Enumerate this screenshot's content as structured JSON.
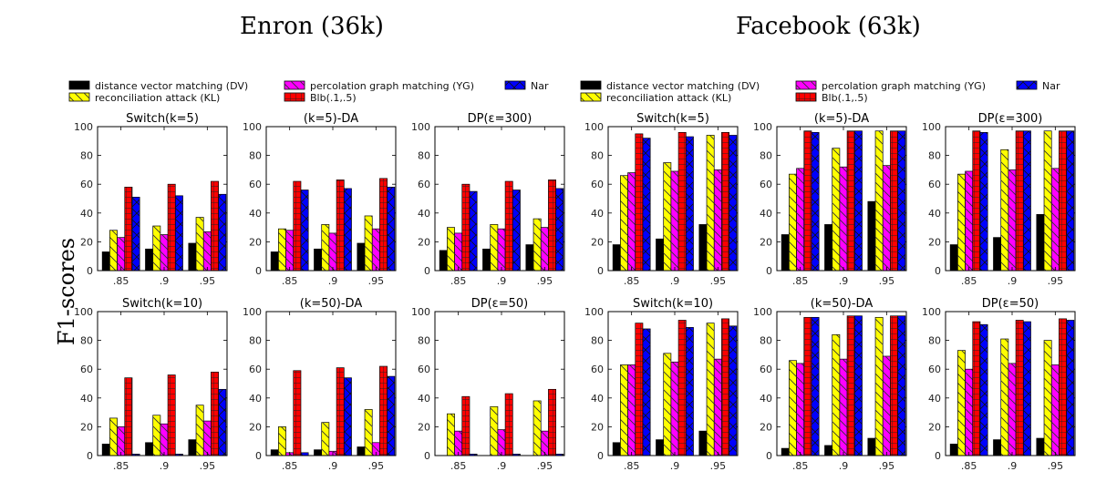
{
  "figure": {
    "ylabel": "F1-scores",
    "datasets": [
      {
        "title": "Enron (36k)"
      },
      {
        "title": "Facebook (63k)"
      }
    ]
  },
  "legend": [
    {
      "label": "distance vector matching (DV)",
      "color": "#000000",
      "hatch": "none"
    },
    {
      "label": "reconciliation attack (KL)",
      "color": "#ffff00",
      "hatch": "diagonal"
    },
    {
      "label": "percolation graph matching (YG)",
      "color": "#ff00ff",
      "hatch": "diagonal"
    },
    {
      "label": "Blb(.1,.5)",
      "color": "#ff0000",
      "hatch": "grid"
    },
    {
      "label": "Nar",
      "color": "#0000ff",
      "hatch": "cross"
    }
  ],
  "chart_data": [
    {
      "type": "bar",
      "dataset": "Enron (36k)",
      "title": "Switch(k=5)",
      "categories": [
        ".85",
        ".9",
        ".95"
      ],
      "ylim": [
        0,
        100
      ],
      "yticks": [
        0,
        20,
        40,
        60,
        80,
        100
      ],
      "series": [
        {
          "name": "DV",
          "values": [
            13,
            15,
            19
          ]
        },
        {
          "name": "KL",
          "values": [
            28,
            31,
            37
          ]
        },
        {
          "name": "YG",
          "values": [
            23,
            25,
            27
          ]
        },
        {
          "name": "Blb(.1,.5)",
          "values": [
            58,
            60,
            62
          ]
        },
        {
          "name": "Nar",
          "values": [
            51,
            52,
            53
          ]
        }
      ]
    },
    {
      "type": "bar",
      "dataset": "Enron (36k)",
      "title": "(k=5)-DA",
      "categories": [
        ".85",
        ".9",
        ".95"
      ],
      "ylim": [
        0,
        100
      ],
      "yticks": [
        0,
        20,
        40,
        60,
        80,
        100
      ],
      "series": [
        {
          "name": "DV",
          "values": [
            13,
            15,
            19
          ]
        },
        {
          "name": "KL",
          "values": [
            29,
            32,
            38
          ]
        },
        {
          "name": "YG",
          "values": [
            28,
            26,
            29
          ]
        },
        {
          "name": "Blb(.1,.5)",
          "values": [
            62,
            63,
            64
          ]
        },
        {
          "name": "Nar",
          "values": [
            56,
            57,
            58
          ]
        }
      ]
    },
    {
      "type": "bar",
      "dataset": "Enron (36k)",
      "title": "DP(ε=300)",
      "categories": [
        ".85",
        ".9",
        ".95"
      ],
      "ylim": [
        0,
        100
      ],
      "yticks": [
        0,
        20,
        40,
        60,
        80,
        100
      ],
      "series": [
        {
          "name": "DV",
          "values": [
            14,
            15,
            18
          ]
        },
        {
          "name": "KL",
          "values": [
            30,
            32,
            36
          ]
        },
        {
          "name": "YG",
          "values": [
            26,
            29,
            30
          ]
        },
        {
          "name": "Blb(.1,.5)",
          "values": [
            60,
            62,
            63
          ]
        },
        {
          "name": "Nar",
          "values": [
            55,
            56,
            57
          ]
        }
      ]
    },
    {
      "type": "bar",
      "dataset": "Enron (36k)",
      "title": "Switch(k=10)",
      "categories": [
        ".85",
        ".9",
        ".95"
      ],
      "ylim": [
        0,
        100
      ],
      "yticks": [
        0,
        20,
        40,
        60,
        80,
        100
      ],
      "series": [
        {
          "name": "DV",
          "values": [
            8,
            9,
            11
          ]
        },
        {
          "name": "KL",
          "values": [
            26,
            28,
            35
          ]
        },
        {
          "name": "YG",
          "values": [
            20,
            22,
            24
          ]
        },
        {
          "name": "Blb(.1,.5)",
          "values": [
            54,
            56,
            58
          ]
        },
        {
          "name": "Nar",
          "values": [
            1,
            1,
            46
          ]
        }
      ]
    },
    {
      "type": "bar",
      "dataset": "Enron (36k)",
      "title": "(k=50)-DA",
      "categories": [
        ".85",
        ".9",
        ".95"
      ],
      "ylim": [
        0,
        100
      ],
      "yticks": [
        0,
        20,
        40,
        60,
        80,
        100
      ],
      "series": [
        {
          "name": "DV",
          "values": [
            4,
            4,
            6
          ]
        },
        {
          "name": "KL",
          "values": [
            20,
            23,
            32
          ]
        },
        {
          "name": "YG",
          "values": [
            2,
            3,
            9
          ]
        },
        {
          "name": "Blb(.1,.5)",
          "values": [
            59,
            61,
            62
          ]
        },
        {
          "name": "Nar",
          "values": [
            2,
            54,
            55
          ]
        }
      ]
    },
    {
      "type": "bar",
      "dataset": "Enron (36k)",
      "title": "DP(ε=50)",
      "categories": [
        ".85",
        ".9",
        ".95"
      ],
      "ylim": [
        0,
        100
      ],
      "yticks": [
        0,
        20,
        40,
        60,
        80,
        100
      ],
      "series": [
        {
          "name": "DV",
          "values": [
            0,
            0,
            0
          ]
        },
        {
          "name": "KL",
          "values": [
            29,
            34,
            38
          ]
        },
        {
          "name": "YG",
          "values": [
            17,
            18,
            17
          ]
        },
        {
          "name": "Blb(.1,.5)",
          "values": [
            41,
            43,
            46
          ]
        },
        {
          "name": "Nar",
          "values": [
            1,
            1,
            1
          ]
        }
      ]
    },
    {
      "type": "bar",
      "dataset": "Facebook (63k)",
      "title": "Switch(k=5)",
      "categories": [
        ".85",
        ".9",
        ".95"
      ],
      "ylim": [
        0,
        100
      ],
      "yticks": [
        0,
        20,
        40,
        60,
        80,
        100
      ],
      "series": [
        {
          "name": "DV",
          "values": [
            18,
            22,
            32
          ]
        },
        {
          "name": "KL",
          "values": [
            66,
            75,
            94
          ]
        },
        {
          "name": "YG",
          "values": [
            68,
            69,
            70
          ]
        },
        {
          "name": "Blb(.1,.5)",
          "values": [
            95,
            96,
            96
          ]
        },
        {
          "name": "Nar",
          "values": [
            92,
            93,
            94
          ]
        }
      ]
    },
    {
      "type": "bar",
      "dataset": "Facebook (63k)",
      "title": "(k=5)-DA",
      "categories": [
        ".85",
        ".9",
        ".95"
      ],
      "ylim": [
        0,
        100
      ],
      "yticks": [
        0,
        20,
        40,
        60,
        80,
        100
      ],
      "series": [
        {
          "name": "DV",
          "values": [
            25,
            32,
            48
          ]
        },
        {
          "name": "KL",
          "values": [
            67,
            85,
            97
          ]
        },
        {
          "name": "YG",
          "values": [
            71,
            72,
            73
          ]
        },
        {
          "name": "Blb(.1,.5)",
          "values": [
            97,
            97,
            97
          ]
        },
        {
          "name": "Nar",
          "values": [
            96,
            97,
            97
          ]
        }
      ]
    },
    {
      "type": "bar",
      "dataset": "Facebook (63k)",
      "title": "DP(ε=300)",
      "categories": [
        ".85",
        ".9",
        ".95"
      ],
      "ylim": [
        0,
        100
      ],
      "yticks": [
        0,
        20,
        40,
        60,
        80,
        100
      ],
      "series": [
        {
          "name": "DV",
          "values": [
            18,
            23,
            39
          ]
        },
        {
          "name": "KL",
          "values": [
            67,
            84,
            97
          ]
        },
        {
          "name": "YG",
          "values": [
            69,
            70,
            71
          ]
        },
        {
          "name": "Blb(.1,.5)",
          "values": [
            97,
            97,
            97
          ]
        },
        {
          "name": "Nar",
          "values": [
            96,
            97,
            97
          ]
        }
      ]
    },
    {
      "type": "bar",
      "dataset": "Facebook (63k)",
      "title": "Switch(k=10)",
      "categories": [
        ".85",
        ".9",
        ".95"
      ],
      "ylim": [
        0,
        100
      ],
      "yticks": [
        0,
        20,
        40,
        60,
        80,
        100
      ],
      "series": [
        {
          "name": "DV",
          "values": [
            9,
            11,
            17
          ]
        },
        {
          "name": "KL",
          "values": [
            63,
            71,
            92
          ]
        },
        {
          "name": "YG",
          "values": [
            63,
            65,
            67
          ]
        },
        {
          "name": "Blb(.1,.5)",
          "values": [
            92,
            94,
            95
          ]
        },
        {
          "name": "Nar",
          "values": [
            88,
            89,
            90
          ]
        }
      ]
    },
    {
      "type": "bar",
      "dataset": "Facebook (63k)",
      "title": "(k=50)-DA",
      "categories": [
        ".85",
        ".9",
        ".95"
      ],
      "ylim": [
        0,
        100
      ],
      "yticks": [
        0,
        20,
        40,
        60,
        80,
        100
      ],
      "series": [
        {
          "name": "DV",
          "values": [
            5,
            7,
            12
          ]
        },
        {
          "name": "KL",
          "values": [
            66,
            84,
            96
          ]
        },
        {
          "name": "YG",
          "values": [
            64,
            67,
            69
          ]
        },
        {
          "name": "Blb(.1,.5)",
          "values": [
            96,
            97,
            97
          ]
        },
        {
          "name": "Nar",
          "values": [
            96,
            97,
            97
          ]
        }
      ]
    },
    {
      "type": "bar",
      "dataset": "Facebook (63k)",
      "title": "DP(ε=50)",
      "categories": [
        ".85",
        ".9",
        ".95"
      ],
      "ylim": [
        0,
        100
      ],
      "yticks": [
        0,
        20,
        40,
        60,
        80,
        100
      ],
      "series": [
        {
          "name": "DV",
          "values": [
            8,
            11,
            12
          ]
        },
        {
          "name": "KL",
          "values": [
            73,
            81,
            80
          ]
        },
        {
          "name": "YG",
          "values": [
            60,
            64,
            63
          ]
        },
        {
          "name": "Blb(.1,.5)",
          "values": [
            93,
            94,
            95
          ]
        },
        {
          "name": "Nar",
          "values": [
            91,
            93,
            94
          ]
        }
      ]
    }
  ]
}
